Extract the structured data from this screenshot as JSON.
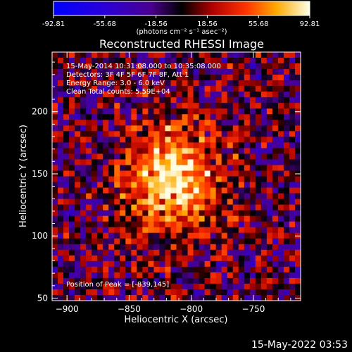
{
  "chart_data": {
    "type": "heatmap",
    "title": "Reconstructed RHESSI Image",
    "xlabel": "Heliocentric X (arcsec)",
    "ylabel": "Heliocentric Y (arcsec)",
    "xlim": [
      -912,
      -712
    ],
    "ylim": [
      48,
      248
    ],
    "xticks": [
      -900,
      -850,
      -800,
      -750
    ],
    "yticks": [
      50,
      100,
      150,
      200
    ],
    "colorbar": {
      "min": -92.81,
      "max": 92.81,
      "ticks": [
        "-92.81",
        "-55.68",
        "-18.56",
        "18.56",
        "55.68",
        "92.81"
      ],
      "units_label": "(photons cm⁻² s⁻¹ asec⁻²)"
    },
    "annotations": [
      "15-May-2014 10:31:08.000 to 10:35:08.000",
      "Detectors: 3F 4F 5F 6F 7F 8F, Att 1",
      "Energy Range: 3.0 - 6.0 keV",
      "Clean     Total counts: 5.59E+04"
    ],
    "peak_label": "Position of Peak = [-839,145]",
    "peak": {
      "x": -839,
      "y": 145
    },
    "source_region": {
      "center_x": -815,
      "center_y": 145,
      "description": "bright extended emission blob with ringing artifacts"
    }
  },
  "footer": {
    "timestamp": "15-May-2022 03:53"
  },
  "colors": {
    "background": "#000000",
    "text": "#ffffff"
  }
}
